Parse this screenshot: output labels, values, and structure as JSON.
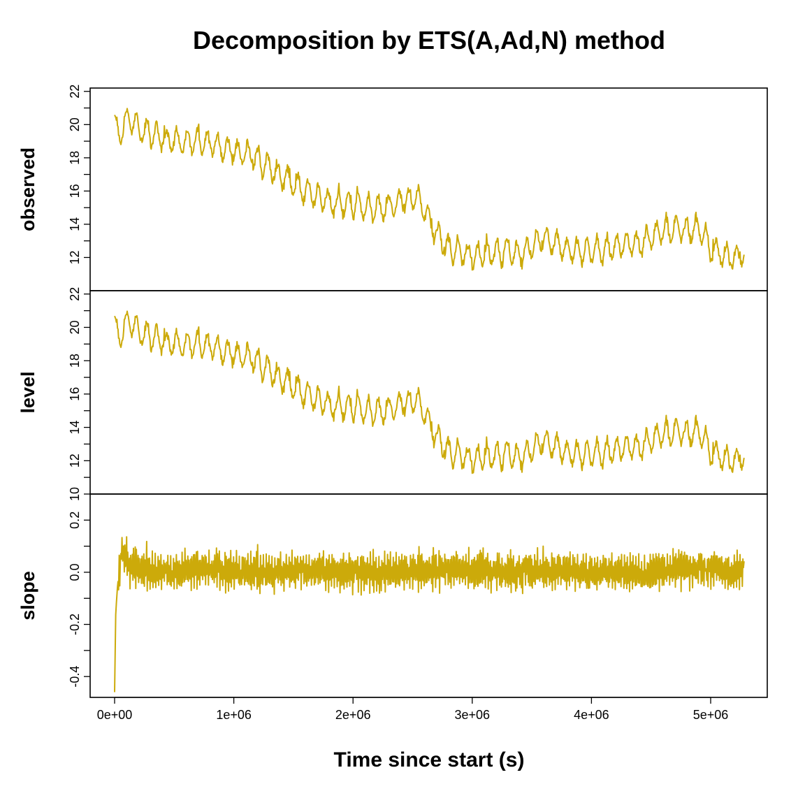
{
  "chart_data": {
    "type": "line",
    "title": "Decomposition by ETS(A,Ad,N) method",
    "xlabel": "Time since start (s)",
    "xlim": [
      0,
      5280000
    ],
    "x_ticks": [
      0,
      1000000,
      2000000,
      3000000,
      4000000,
      5000000
    ],
    "x_tick_labels": [
      "0e+00",
      "1e+06",
      "2e+06",
      "3e+06",
      "4e+06",
      "5e+06"
    ],
    "line_color": "#CCAA0A",
    "grid": false,
    "panels": [
      {
        "name": "observed",
        "ylabel": "observed",
        "ylim": [
          10,
          22.2
        ],
        "y_ticks": [
          12,
          14,
          16,
          18,
          20,
          22
        ],
        "y_tick_labels": [
          "12",
          "14",
          "16",
          "18",
          "20",
          "22"
        ],
        "x": [
          0,
          30000,
          80000,
          150000,
          230000,
          350000,
          500000,
          650000,
          800000,
          950000,
          1050000,
          1150000,
          1250000,
          1350000,
          1450000,
          1550000,
          1650000,
          1750000,
          1850000,
          1950000,
          2050000,
          2150000,
          2250000,
          2350000,
          2450000,
          2550000,
          2600000,
          2700000,
          2800000,
          2900000,
          3000000,
          3100000,
          3200000,
          3300000,
          3400000,
          3500000,
          3600000,
          3700000,
          3800000,
          3900000,
          4000000,
          4100000,
          4200000,
          4300000,
          4400000,
          4500000,
          4600000,
          4700000,
          4800000,
          4900000,
          5000000,
          5100000,
          5200000,
          5260000
        ],
        "values": [
          20.1,
          19.2,
          20.2,
          20.2,
          19.6,
          19.3,
          18.9,
          19.0,
          18.8,
          18.6,
          18.3,
          18.1,
          17.6,
          17.1,
          16.7,
          16.2,
          15.8,
          15.5,
          15.2,
          15.2,
          15.2,
          15.0,
          14.9,
          15.2,
          15.6,
          15.6,
          14.8,
          13.4,
          12.6,
          12.3,
          12.0,
          12.2,
          12.3,
          12.4,
          12.2,
          12.7,
          13.1,
          12.8,
          12.5,
          12.4,
          12.4,
          12.5,
          12.6,
          12.8,
          12.8,
          13.3,
          13.7,
          13.8,
          13.6,
          13.8,
          12.6,
          12.2,
          11.9,
          12.2
        ],
        "amplitude": 0.85
      },
      {
        "name": "level",
        "ylabel": "level",
        "ylim": [
          10,
          22.2
        ],
        "y_ticks": [
          10,
          12,
          14,
          16,
          18,
          20,
          22
        ],
        "y_tick_labels": [
          "10",
          "12",
          "14",
          "16",
          "18",
          "20",
          "22"
        ],
        "x": [
          0,
          30000,
          80000,
          150000,
          230000,
          350000,
          500000,
          650000,
          800000,
          950000,
          1050000,
          1150000,
          1250000,
          1350000,
          1450000,
          1550000,
          1650000,
          1750000,
          1850000,
          1950000,
          2050000,
          2150000,
          2250000,
          2350000,
          2450000,
          2550000,
          2600000,
          2700000,
          2800000,
          2900000,
          3000000,
          3100000,
          3200000,
          3300000,
          3400000,
          3500000,
          3600000,
          3700000,
          3800000,
          3900000,
          4000000,
          4100000,
          4200000,
          4300000,
          4400000,
          4500000,
          4600000,
          4700000,
          4800000,
          4900000,
          5000000,
          5100000,
          5200000,
          5260000
        ],
        "values": [
          20.2,
          19.2,
          20.2,
          20.2,
          19.6,
          19.3,
          18.9,
          19.0,
          18.8,
          18.6,
          18.3,
          18.1,
          17.6,
          17.1,
          16.7,
          16.2,
          15.8,
          15.5,
          15.2,
          15.2,
          15.2,
          15.0,
          14.9,
          15.2,
          15.6,
          15.6,
          14.8,
          13.4,
          12.6,
          12.3,
          12.0,
          12.2,
          12.3,
          12.4,
          12.2,
          12.7,
          13.1,
          12.8,
          12.5,
          12.4,
          12.4,
          12.5,
          12.6,
          12.8,
          12.8,
          13.3,
          13.7,
          13.8,
          13.6,
          13.8,
          12.6,
          12.2,
          11.9,
          12.2
        ],
        "amplitude": 0.85
      },
      {
        "name": "slope",
        "ylabel": "slope",
        "ylim": [
          -0.48,
          0.3
        ],
        "y_ticks": [
          -0.4,
          -0.2,
          0.0,
          0.2
        ],
        "y_tick_labels": [
          "-0.4",
          "-0.2",
          "0.0",
          "0.2"
        ],
        "x": [
          0,
          10000,
          25000,
          60000,
          120000,
          200000,
          400000,
          800000,
          1200000,
          1600000,
          2000000,
          2400000,
          2800000,
          3200000,
          3600000,
          4000000,
          4400000,
          4800000,
          5200000,
          5260000
        ],
        "values": [
          -0.46,
          -0.15,
          -0.05,
          0.08,
          0.02,
          0.01,
          0.0,
          0.01,
          0.0,
          0.01,
          0.0,
          0.0,
          0.01,
          0.0,
          0.01,
          0.0,
          0.0,
          0.01,
          0.0,
          0.0
        ],
        "amplitude": 0.075
      }
    ]
  }
}
